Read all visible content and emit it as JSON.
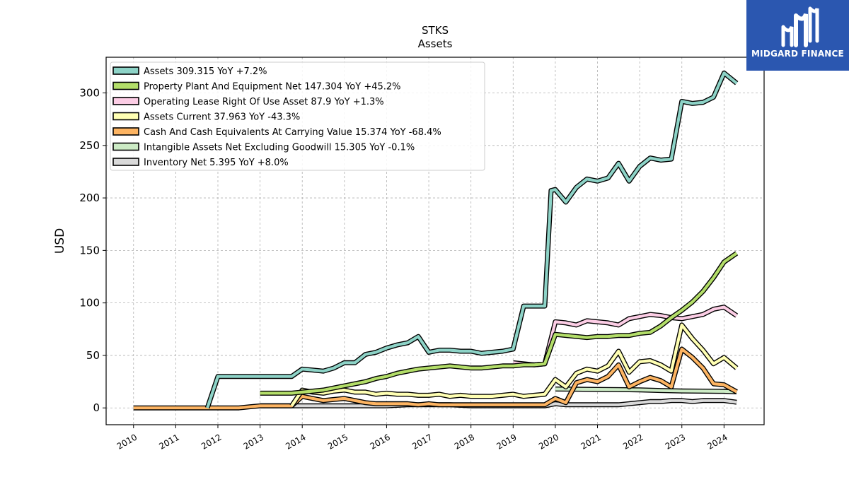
{
  "brand": {
    "name": "MIDGARD FINANCE"
  },
  "chart_data": {
    "type": "line",
    "title": "STKS",
    "subtitle": "Assets",
    "ylabel": "USD",
    "xlim": [
      2009.35,
      2024.95
    ],
    "ylim": [
      -16,
      334
    ],
    "x_ticks": [
      2010,
      2011,
      2012,
      2013,
      2014,
      2015,
      2016,
      2017,
      2018,
      2019,
      2020,
      2021,
      2022,
      2023,
      2024
    ],
    "y_ticks": [
      0,
      50,
      100,
      150,
      200,
      250,
      300
    ],
    "grid": true,
    "legend_position": "top-left",
    "series": [
      {
        "name": "Assets",
        "legend": "Assets  309.315 YoY +7.2%",
        "color": "#8dd3c7",
        "points": [
          [
            2011.75,
            0
          ],
          [
            2012.0,
            30
          ],
          [
            2012.25,
            30
          ],
          [
            2012.5,
            30
          ],
          [
            2012.75,
            30
          ],
          [
            2013.0,
            30
          ],
          [
            2013.25,
            30
          ],
          [
            2013.5,
            30
          ],
          [
            2013.75,
            30
          ],
          [
            2014.0,
            37
          ],
          [
            2014.25,
            36
          ],
          [
            2014.5,
            35
          ],
          [
            2014.75,
            38
          ],
          [
            2015.0,
            43
          ],
          [
            2015.25,
            43
          ],
          [
            2015.5,
            51
          ],
          [
            2015.75,
            53
          ],
          [
            2016.0,
            57
          ],
          [
            2016.25,
            60
          ],
          [
            2016.5,
            62
          ],
          [
            2016.75,
            68
          ],
          [
            2017.0,
            53
          ],
          [
            2017.25,
            55
          ],
          [
            2017.5,
            55
          ],
          [
            2017.75,
            54
          ],
          [
            2018.0,
            54
          ],
          [
            2018.25,
            52
          ],
          [
            2018.5,
            53
          ],
          [
            2018.75,
            54
          ],
          [
            2019.0,
            56
          ],
          [
            2019.25,
            97
          ],
          [
            2019.5,
            97
          ],
          [
            2019.75,
            97
          ],
          [
            2019.9,
            207
          ],
          [
            2020.0,
            208
          ],
          [
            2020.25,
            196
          ],
          [
            2020.5,
            210
          ],
          [
            2020.75,
            218
          ],
          [
            2021.0,
            216
          ],
          [
            2021.25,
            219
          ],
          [
            2021.5,
            233
          ],
          [
            2021.75,
            216
          ],
          [
            2022.0,
            230
          ],
          [
            2022.25,
            238
          ],
          [
            2022.5,
            236
          ],
          [
            2022.75,
            237
          ],
          [
            2023.0,
            292
          ],
          [
            2023.25,
            290
          ],
          [
            2023.5,
            291
          ],
          [
            2023.75,
            296
          ],
          [
            2024.0,
            319
          ],
          [
            2024.3,
            309.315
          ]
        ]
      },
      {
        "name": "Property Plant And Equipment Net",
        "legend": "Property Plant And Equipment Net  147.304 YoY +45.2%",
        "color": "#b3de69",
        "points": [
          [
            2013.0,
            14
          ],
          [
            2013.75,
            14
          ],
          [
            2014.0,
            15
          ],
          [
            2014.25,
            16
          ],
          [
            2014.5,
            17
          ],
          [
            2014.75,
            19
          ],
          [
            2015.0,
            21
          ],
          [
            2015.25,
            23
          ],
          [
            2015.5,
            25
          ],
          [
            2015.75,
            28
          ],
          [
            2016.0,
            30
          ],
          [
            2016.25,
            33
          ],
          [
            2016.5,
            35
          ],
          [
            2016.75,
            37
          ],
          [
            2017.0,
            38
          ],
          [
            2017.25,
            39
          ],
          [
            2017.5,
            40
          ],
          [
            2017.75,
            39
          ],
          [
            2018.0,
            38
          ],
          [
            2018.25,
            38
          ],
          [
            2018.5,
            39
          ],
          [
            2018.75,
            40
          ],
          [
            2019.0,
            40
          ],
          [
            2019.25,
            41
          ],
          [
            2019.5,
            41
          ],
          [
            2019.75,
            42
          ],
          [
            2020.0,
            70
          ],
          [
            2020.25,
            69
          ],
          [
            2020.5,
            68
          ],
          [
            2020.75,
            67
          ],
          [
            2021.0,
            68
          ],
          [
            2021.25,
            68
          ],
          [
            2021.5,
            69
          ],
          [
            2021.75,
            69
          ],
          [
            2022.0,
            71
          ],
          [
            2022.25,
            72
          ],
          [
            2022.5,
            78
          ],
          [
            2022.75,
            86
          ],
          [
            2023.0,
            93
          ],
          [
            2023.25,
            101
          ],
          [
            2023.5,
            111
          ],
          [
            2023.75,
            124
          ],
          [
            2024.0,
            139
          ],
          [
            2024.3,
            147.304
          ]
        ]
      },
      {
        "name": "Operating Lease Right Of Use Asset",
        "legend": "Operating Lease Right Of Use Asset  87.9 YoY +1.3%",
        "color": "#fccde5",
        "points": [
          [
            2019.0,
            43
          ],
          [
            2019.25,
            42
          ],
          [
            2019.5,
            41
          ],
          [
            2019.75,
            42
          ],
          [
            2020.0,
            82
          ],
          [
            2020.25,
            81
          ],
          [
            2020.5,
            79
          ],
          [
            2020.75,
            83
          ],
          [
            2021.0,
            82
          ],
          [
            2021.25,
            81
          ],
          [
            2021.5,
            79
          ],
          [
            2021.75,
            85
          ],
          [
            2022.0,
            87
          ],
          [
            2022.25,
            89
          ],
          [
            2022.5,
            88
          ],
          [
            2022.75,
            86
          ],
          [
            2023.0,
            85
          ],
          [
            2023.25,
            87
          ],
          [
            2023.5,
            89
          ],
          [
            2023.75,
            94
          ],
          [
            2024.0,
            96
          ],
          [
            2024.3,
            87.9
          ]
        ]
      },
      {
        "name": "Assets Current",
        "legend": "Assets Current  37.963 YoY -43.3%",
        "color": "#ffffb3",
        "points": [
          [
            2013.75,
            2
          ],
          [
            2014.0,
            17
          ],
          [
            2014.25,
            15
          ],
          [
            2014.5,
            14
          ],
          [
            2014.75,
            16
          ],
          [
            2015.0,
            17
          ],
          [
            2015.25,
            15
          ],
          [
            2015.5,
            15
          ],
          [
            2015.75,
            13
          ],
          [
            2016.0,
            14
          ],
          [
            2016.25,
            13
          ],
          [
            2016.5,
            13
          ],
          [
            2016.75,
            12
          ],
          [
            2017.0,
            12
          ],
          [
            2017.25,
            13
          ],
          [
            2017.5,
            11
          ],
          [
            2017.75,
            12
          ],
          [
            2018.0,
            11
          ],
          [
            2018.25,
            11
          ],
          [
            2018.5,
            11
          ],
          [
            2018.75,
            12
          ],
          [
            2019.0,
            13
          ],
          [
            2019.25,
            11
          ],
          [
            2019.5,
            12
          ],
          [
            2019.75,
            13
          ],
          [
            2020.0,
            27
          ],
          [
            2020.25,
            20
          ],
          [
            2020.5,
            33
          ],
          [
            2020.75,
            37
          ],
          [
            2021.0,
            35
          ],
          [
            2021.25,
            40
          ],
          [
            2021.5,
            54
          ],
          [
            2021.75,
            34
          ],
          [
            2022.0,
            44
          ],
          [
            2022.25,
            45
          ],
          [
            2022.5,
            41
          ],
          [
            2022.75,
            35
          ],
          [
            2023.0,
            79
          ],
          [
            2023.25,
            66
          ],
          [
            2023.5,
            55
          ],
          [
            2023.75,
            42
          ],
          [
            2024.0,
            48
          ],
          [
            2024.3,
            37.963
          ]
        ]
      },
      {
        "name": "Cash And Cash Equivalents At Carrying Value",
        "legend": "Cash And Cash Equivalents At Carrying Value  15.374 YoY -68.4%",
        "color": "#fdb462",
        "points": [
          [
            2010.0,
            0
          ],
          [
            2011.0,
            0
          ],
          [
            2012.0,
            0
          ],
          [
            2012.5,
            0
          ],
          [
            2012.75,
            1
          ],
          [
            2013.0,
            2
          ],
          [
            2013.75,
            2
          ],
          [
            2014.0,
            11
          ],
          [
            2014.25,
            9
          ],
          [
            2014.5,
            7
          ],
          [
            2014.75,
            8
          ],
          [
            2015.0,
            9
          ],
          [
            2015.25,
            7
          ],
          [
            2015.5,
            5
          ],
          [
            2015.75,
            4
          ],
          [
            2016.0,
            4
          ],
          [
            2016.25,
            4
          ],
          [
            2016.5,
            4
          ],
          [
            2016.75,
            3
          ],
          [
            2017.0,
            4
          ],
          [
            2017.25,
            3
          ],
          [
            2017.5,
            3
          ],
          [
            2017.75,
            3
          ],
          [
            2018.0,
            3
          ],
          [
            2018.25,
            3
          ],
          [
            2018.5,
            3
          ],
          [
            2018.75,
            3
          ],
          [
            2019.0,
            3
          ],
          [
            2019.25,
            3
          ],
          [
            2019.5,
            3
          ],
          [
            2019.75,
            3
          ],
          [
            2020.0,
            9
          ],
          [
            2020.25,
            5
          ],
          [
            2020.5,
            24
          ],
          [
            2020.75,
            27
          ],
          [
            2021.0,
            25
          ],
          [
            2021.25,
            30
          ],
          [
            2021.5,
            41
          ],
          [
            2021.75,
            20
          ],
          [
            2022.0,
            25
          ],
          [
            2022.25,
            29
          ],
          [
            2022.5,
            26
          ],
          [
            2022.75,
            20
          ],
          [
            2023.0,
            56
          ],
          [
            2023.25,
            48
          ],
          [
            2023.5,
            38
          ],
          [
            2023.75,
            23
          ],
          [
            2024.0,
            22
          ],
          [
            2024.3,
            15.374
          ]
        ]
      },
      {
        "name": "Intangible Assets Net Excluding Goodwill",
        "legend": "Intangible Assets Net Excluding Goodwill  15.305 YoY -0.1%",
        "color": "#ccebc5",
        "points": [
          [
            2020.0,
            18
          ],
          [
            2020.5,
            17.8
          ],
          [
            2021.0,
            17.6
          ],
          [
            2021.5,
            17.4
          ],
          [
            2022.0,
            17.2
          ],
          [
            2022.5,
            16.6
          ],
          [
            2023.0,
            16.1
          ],
          [
            2023.5,
            16.0
          ],
          [
            2024.0,
            15.8
          ],
          [
            2024.3,
            15.305
          ]
        ]
      },
      {
        "name": "Inventory Net",
        "legend": "Inventory Net  5.395 YoY +8.0%",
        "color": "#d9d9d9",
        "points": [
          [
            2013.0,
            2
          ],
          [
            2013.75,
            2
          ],
          [
            2014.0,
            2
          ],
          [
            2015.0,
            2
          ],
          [
            2016.0,
            2
          ],
          [
            2016.5,
            3
          ],
          [
            2017.0,
            3
          ],
          [
            2017.5,
            3
          ],
          [
            2018.0,
            2
          ],
          [
            2018.5,
            2
          ],
          [
            2019.0,
            2
          ],
          [
            2019.5,
            2
          ],
          [
            2019.75,
            2
          ],
          [
            2020.0,
            4
          ],
          [
            2020.25,
            3
          ],
          [
            2020.5,
            3
          ],
          [
            2021.0,
            3
          ],
          [
            2021.5,
            3
          ],
          [
            2021.75,
            4
          ],
          [
            2022.0,
            5
          ],
          [
            2022.25,
            6
          ],
          [
            2022.5,
            6
          ],
          [
            2022.75,
            7
          ],
          [
            2023.0,
            7
          ],
          [
            2023.25,
            6
          ],
          [
            2023.5,
            7
          ],
          [
            2023.75,
            7
          ],
          [
            2024.0,
            7
          ],
          [
            2024.3,
            5.395
          ]
        ]
      }
    ]
  }
}
